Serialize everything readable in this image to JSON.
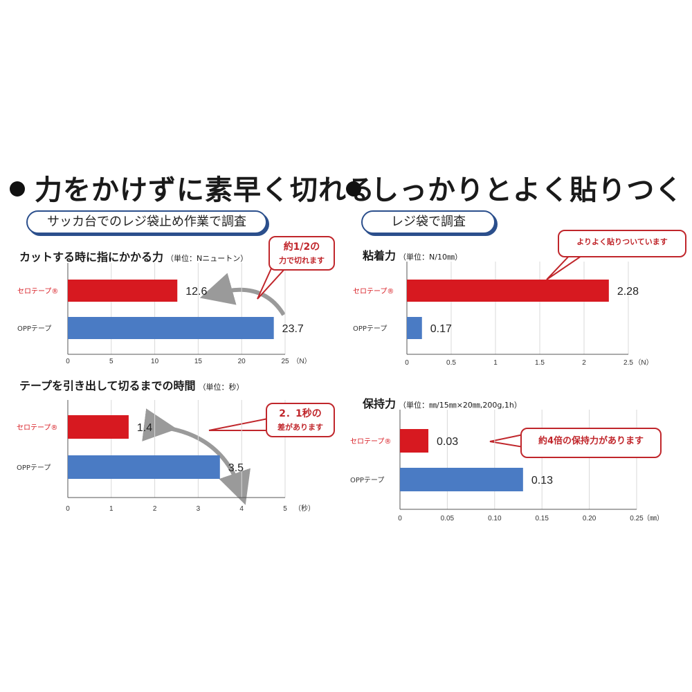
{
  "headings": {
    "left": "力をかけずに素早く切れる",
    "right": "しっかりとよく貼りつく"
  },
  "pills": {
    "left": "サッカ台でのレジ袋止め作業で調査",
    "right": "レジ袋で調査"
  },
  "colors": {
    "red": "#d71920",
    "blue": "#4a7bc4",
    "callout": "#c0262b",
    "arrow": "#9a9a9a"
  },
  "callouts": {
    "c1_line1": "約1/2の",
    "c1_line2": "力で切れます",
    "c2_line1": "2．1秒の",
    "c2_line2": "差があります",
    "c3": "よりよく貼りついています",
    "c4": "約4倍の保持力があります"
  },
  "chart_data": [
    {
      "type": "bar",
      "title": "カットする時に指にかかる力",
      "unit_note": "（単位：Nニュートン）",
      "categories": [
        "セロテープ®",
        "OPPテープ"
      ],
      "values": [
        12.6,
        23.7
      ],
      "value_labels": [
        "12.6",
        "23.7"
      ],
      "xlim": [
        0,
        25
      ],
      "ticks": [
        "0",
        "5",
        "10",
        "15",
        "20",
        "25"
      ],
      "unit": "（N）"
    },
    {
      "type": "bar",
      "title": "テープを引き出して切るまでの時間",
      "unit_note": "（単位：秒）",
      "categories": [
        "セロテープ®",
        "OPPテープ"
      ],
      "values": [
        1.4,
        3.5
      ],
      "value_labels": [
        "1.4",
        "3.5"
      ],
      "xlim": [
        0,
        5
      ],
      "ticks": [
        "0",
        "1",
        "2",
        "3",
        "4",
        "5"
      ],
      "unit": "（秒）"
    },
    {
      "type": "bar",
      "title": "粘着力",
      "unit_note": "（単位：N/10㎜）",
      "categories": [
        "セロテープ®",
        "OPPテープ"
      ],
      "values": [
        2.28,
        0.17
      ],
      "value_labels": [
        "2.28",
        "0.17"
      ],
      "xlim": [
        0,
        2.5
      ],
      "ticks": [
        "0",
        "0.5",
        "1",
        "1.5",
        "2",
        "2.5"
      ],
      "unit": "（N）"
    },
    {
      "type": "bar",
      "title": "保持力",
      "unit_note": "（単位：㎜/15㎜×20㎜,200g,1h）",
      "categories": [
        "セロテープ®",
        "OPPテープ"
      ],
      "values": [
        0.03,
        0.13
      ],
      "value_labels": [
        "0.03",
        "0.13"
      ],
      "xlim": [
        0,
        0.25
      ],
      "ticks": [
        "0",
        "0.05",
        "0.10",
        "0.15",
        "0.20",
        "0.25"
      ],
      "unit": "（㎜）"
    }
  ]
}
